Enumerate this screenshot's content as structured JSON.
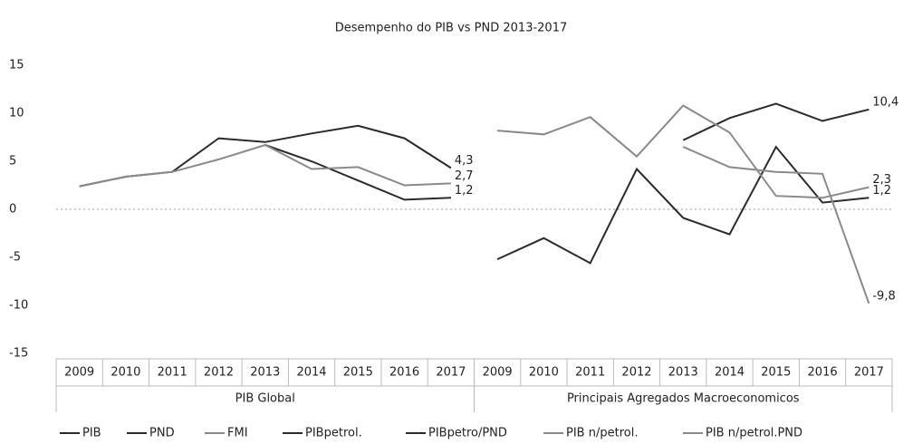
{
  "chart_data": {
    "type": "line",
    "title": "Desempenho do PIB vs PND 2013-2017",
    "categories": [
      "2009",
      "2010",
      "2011",
      "2012",
      "2013",
      "2014",
      "2015",
      "2016",
      "2017",
      "2009",
      "2010",
      "2011",
      "2012",
      "2013",
      "2014",
      "2015",
      "2016",
      "2017"
    ],
    "category_groups": [
      "PIB Global",
      "Principais Agregados Macroeconomicos"
    ],
    "ylim": [
      -15,
      15
    ],
    "yticks": [
      -15,
      -10,
      -5,
      0,
      5,
      10,
      15
    ],
    "grid": false,
    "legend": "bottom",
    "series": [
      {
        "name": "PIB",
        "color": "#2b2b2b",
        "values": [
          2.4,
          3.4,
          3.9,
          7.4,
          7.0,
          7.9,
          8.7,
          7.4,
          4.3,
          null,
          null,
          null,
          null,
          null,
          null,
          null,
          null,
          null
        ],
        "value_labels": [
          null,
          null,
          null,
          null,
          null,
          null,
          null,
          null,
          "4,3",
          null,
          null,
          null,
          null,
          null,
          null,
          null,
          null,
          null
        ]
      },
      {
        "name": "PND",
        "color": "#2b2b2b",
        "values": [
          null,
          null,
          null,
          null,
          6.7,
          5.0,
          3.0,
          1.0,
          1.2,
          null,
          null,
          null,
          null,
          null,
          null,
          null,
          null,
          null
        ],
        "value_labels": [
          null,
          null,
          null,
          null,
          null,
          null,
          null,
          null,
          "1,2",
          null,
          null,
          null,
          null,
          null,
          null,
          null,
          null,
          null
        ]
      },
      {
        "name": "FMI",
        "color": "#8a8a8a",
        "values": [
          2.4,
          3.4,
          3.9,
          5.2,
          6.7,
          4.2,
          4.4,
          2.5,
          2.7,
          null,
          null,
          null,
          null,
          null,
          null,
          null,
          null,
          null
        ],
        "value_labels": [
          null,
          null,
          null,
          null,
          null,
          null,
          null,
          null,
          "2,7",
          null,
          null,
          null,
          null,
          null,
          null,
          null,
          null,
          null
        ]
      },
      {
        "name": "PIBpetrol.",
        "color": "#2b2b2b",
        "values": [
          null,
          null,
          null,
          null,
          null,
          null,
          null,
          null,
          null,
          -5.2,
          -3.0,
          -5.6,
          4.2,
          -0.9,
          -2.6,
          6.5,
          0.7,
          1.2
        ],
        "value_labels": [
          null,
          null,
          null,
          null,
          null,
          null,
          null,
          null,
          null,
          null,
          null,
          null,
          null,
          null,
          null,
          null,
          null,
          "1,2"
        ]
      },
      {
        "name": "PIBpetro/PND",
        "color": "#2b2b2b",
        "values": [
          null,
          null,
          null,
          null,
          null,
          null,
          null,
          null,
          null,
          null,
          null,
          null,
          null,
          7.2,
          9.5,
          11.0,
          9.2,
          10.4
        ],
        "value_labels": [
          null,
          null,
          null,
          null,
          null,
          null,
          null,
          null,
          null,
          null,
          null,
          null,
          null,
          null,
          null,
          null,
          null,
          "10,4"
        ]
      },
      {
        "name": "PIB n/petrol.",
        "color": "#8a8a8a",
        "values": [
          null,
          null,
          null,
          null,
          null,
          null,
          null,
          null,
          null,
          8.2,
          7.8,
          9.6,
          5.5,
          10.8,
          8.0,
          1.4,
          1.2,
          2.3
        ],
        "value_labels": [
          null,
          null,
          null,
          null,
          null,
          null,
          null,
          null,
          null,
          null,
          null,
          null,
          null,
          null,
          null,
          null,
          null,
          "2,3"
        ]
      },
      {
        "name": "PIB n/petrol.PND",
        "color": "#8a8a8a",
        "values": [
          null,
          null,
          null,
          null,
          null,
          null,
          null,
          null,
          null,
          null,
          null,
          null,
          null,
          6.5,
          4.4,
          3.9,
          3.7,
          -9.8
        ],
        "value_labels": [
          null,
          null,
          null,
          null,
          null,
          null,
          null,
          null,
          null,
          null,
          null,
          null,
          null,
          null,
          null,
          null,
          null,
          "-9,8"
        ]
      }
    ]
  }
}
